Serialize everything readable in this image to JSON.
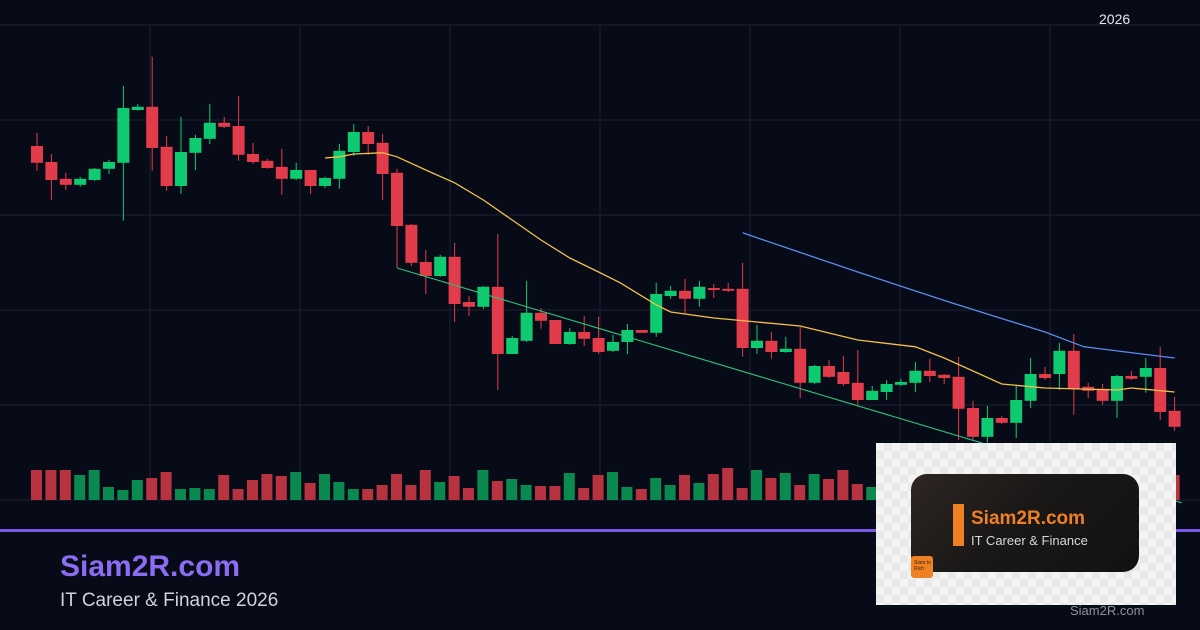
{
  "chart_data": {
    "type": "candlestick",
    "title": "",
    "xlabel": "",
    "ylabel": "",
    "time_label": "2026",
    "ylim": [
      0,
      130
    ],
    "grid": true,
    "colors": {
      "up": "#0ecb71",
      "down": "#e23b4a",
      "up_volume": "#0b8a4f",
      "down_volume": "#b7333f",
      "ma_fast": "#f5c04a",
      "ma_slow": "#5b8cf0",
      "trendline": "#2fbf7a",
      "grid": "#1c2233",
      "background": "#070b17"
    },
    "candles_ohlc": [
      [
        93.5,
        96.8,
        87.3,
        89.3
      ],
      [
        89.5,
        91.5,
        80,
        85
      ],
      [
        85.3,
        86.8,
        82.5,
        83.8
      ],
      [
        83.8,
        85.8,
        83.3,
        85.3
      ],
      [
        85,
        88,
        84.8,
        87.8
      ],
      [
        87.8,
        90,
        86.5,
        89.5
      ],
      [
        89.3,
        108.5,
        74.8,
        103
      ],
      [
        102.5,
        104,
        102.3,
        103.3
      ],
      [
        103.3,
        115.8,
        87.3,
        93
      ],
      [
        93.3,
        96,
        82.3,
        83.5
      ],
      [
        83.5,
        100.8,
        81.5,
        92
      ],
      [
        91.8,
        96.3,
        87.5,
        95.5
      ],
      [
        95.3,
        104,
        94,
        99.3
      ],
      [
        99.3,
        100.8,
        98,
        98.3
      ],
      [
        98.5,
        106,
        89.8,
        91.3
      ],
      [
        91.5,
        94.3,
        89,
        89.5
      ],
      [
        89.8,
        90.3,
        87.8,
        88
      ],
      [
        88.3,
        92.8,
        81.3,
        85.3
      ],
      [
        85.3,
        89.3,
        85,
        87.5
      ],
      [
        87.5,
        87.5,
        81.5,
        83.5
      ],
      [
        83.5,
        85.8,
        83,
        85.5
      ],
      [
        85.3,
        94,
        82.8,
        92.3
      ],
      [
        92,
        99,
        91,
        97
      ],
      [
        97,
        98.5,
        91.3,
        94
      ],
      [
        94.3,
        96.5,
        80,
        86.5
      ],
      [
        86.8,
        87.8,
        63,
        73.5
      ],
      [
        73.8,
        74,
        63.5,
        64.3
      ],
      [
        64.5,
        67.5,
        56.5,
        61
      ],
      [
        61,
        66.3,
        60.8,
        65.8
      ],
      [
        65.8,
        69.3,
        49.5,
        54
      ],
      [
        54.5,
        56,
        51,
        53.3
      ],
      [
        53.3,
        58.5,
        52.8,
        58.3
      ],
      [
        58.3,
        71.5,
        32.5,
        41.5
      ],
      [
        41.5,
        46,
        41.5,
        45.5
      ],
      [
        44.8,
        59.8,
        44.5,
        51.8
      ],
      [
        51.8,
        53,
        47.8,
        49.8
      ],
      [
        50,
        50,
        44,
        44
      ],
      [
        44,
        48,
        43.8,
        47
      ],
      [
        47,
        51,
        43.5,
        45.3
      ],
      [
        45.5,
        50.8,
        41.5,
        42
      ],
      [
        42.3,
        46.3,
        42,
        44.5
      ],
      [
        44.5,
        49,
        41.5,
        47.5
      ],
      [
        47.5,
        47.5,
        46.8,
        46.8
      ],
      [
        46.8,
        59.3,
        45.8,
        56.5
      ],
      [
        56,
        58.5,
        55.3,
        57.3
      ],
      [
        57.3,
        60.3,
        51.5,
        55.3
      ],
      [
        55.3,
        59.8,
        53.3,
        58.3
      ],
      [
        58,
        59,
        55.5,
        57.5
      ],
      [
        57.8,
        59.3,
        57,
        57.3
      ],
      [
        57.8,
        64.3,
        40.8,
        43
      ],
      [
        43,
        48.8,
        41.5,
        44.8
      ],
      [
        44.8,
        47,
        40.3,
        42
      ],
      [
        42,
        45.8,
        41.8,
        42.8
      ],
      [
        42.8,
        48.3,
        30.5,
        34.3
      ],
      [
        34.3,
        38.8,
        34,
        38.5
      ],
      [
        38.5,
        40,
        35.5,
        35.8
      ],
      [
        37,
        41,
        33.5,
        34
      ],
      [
        34.3,
        42.5,
        28.8,
        30
      ],
      [
        30,
        33.5,
        30,
        32.3
      ],
      [
        32,
        35,
        30,
        34
      ],
      [
        33.8,
        35.3,
        33.5,
        34.5
      ],
      [
        34.3,
        39.5,
        32,
        37.3
      ],
      [
        37.3,
        40.3,
        34.5,
        36
      ],
      [
        36.3,
        36.5,
        34,
        35.5
      ],
      [
        35.8,
        40.8,
        20,
        27.8
      ],
      [
        28,
        29.8,
        20,
        20.8
      ],
      [
        20.8,
        28.5,
        19.3,
        25.5
      ],
      [
        25.5,
        26,
        24,
        24.3
      ],
      [
        24.3,
        33.8,
        20.5,
        30
      ],
      [
        29.8,
        40.5,
        28,
        36.5
      ],
      [
        36.5,
        38.3,
        35,
        35.5
      ],
      [
        36.5,
        44.3,
        32.5,
        42.3
      ],
      [
        42.3,
        46.5,
        26.3,
        32.8
      ],
      [
        33.3,
        34.3,
        30.5,
        32.3
      ],
      [
        32.8,
        34,
        28.8,
        29.8
      ],
      [
        29.8,
        36.3,
        25.5,
        36
      ],
      [
        36,
        37.3,
        35,
        35.3
      ],
      [
        35.8,
        40.5,
        31.8,
        38
      ],
      [
        38,
        43.3,
        25,
        27
      ],
      [
        27.3,
        30.8,
        22.3,
        23.3
      ]
    ],
    "volumes": [
      30,
      30,
      30,
      25,
      30,
      13,
      10,
      20,
      22,
      28,
      11,
      12,
      11,
      25,
      11,
      20,
      26,
      24,
      28,
      17,
      26,
      18,
      11,
      11,
      15,
      26,
      15,
      30,
      18,
      24,
      12,
      30,
      19,
      21,
      15,
      14,
      14,
      27,
      12,
      25,
      28,
      13,
      11,
      22,
      15,
      25,
      17,
      26,
      32,
      12,
      30,
      22,
      27,
      15,
      26,
      21,
      30,
      16,
      13,
      20,
      18,
      25,
      15,
      22,
      28,
      30,
      19,
      14,
      24,
      27,
      16,
      21,
      29,
      18,
      23,
      17,
      26,
      20,
      15,
      25
    ],
    "ma_fast": [
      [
        21,
        90.5
      ],
      [
        22,
        90.8
      ],
      [
        23,
        91.5
      ],
      [
        25,
        91.8
      ],
      [
        26,
        90.8
      ],
      [
        28,
        87.5
      ],
      [
        30,
        84.3
      ],
      [
        32,
        80
      ],
      [
        34,
        75
      ],
      [
        36,
        70
      ],
      [
        38,
        65.5
      ],
      [
        40,
        62
      ],
      [
        41.5,
        59.3
      ],
      [
        44,
        53.8
      ],
      [
        45,
        52
      ],
      [
        48,
        50.5
      ],
      [
        51,
        49.5
      ],
      [
        54,
        48.5
      ],
      [
        58,
        45
      ],
      [
        62,
        43.3
      ],
      [
        64,
        40.5
      ],
      [
        68,
        34
      ],
      [
        71,
        33
      ],
      [
        76,
        32.5
      ],
      [
        77,
        33
      ],
      [
        80,
        32
      ]
    ],
    "ma_slow": [
      [
        50,
        71.8
      ],
      [
        53.5,
        67.5
      ],
      [
        58,
        62
      ],
      [
        64.5,
        54.3
      ],
      [
        71,
        47
      ],
      [
        73.7,
        43.3
      ],
      [
        80,
        40.5
      ]
    ],
    "trendline": [
      [
        26,
        63
      ],
      [
        80.5,
        4.3
      ]
    ]
  },
  "footer": {
    "brand": "Siam2R.com",
    "tagline": "IT Career & Finance 2026",
    "watermark": "Siam2R.com"
  },
  "logo": {
    "name": "Siam2R.com",
    "subtitle": "IT Career & Finance",
    "badge": "Siam to Rich"
  }
}
